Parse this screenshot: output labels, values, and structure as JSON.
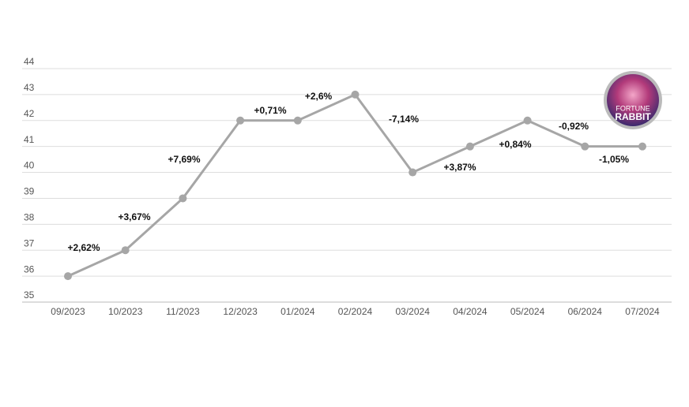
{
  "chart_data": {
    "type": "line",
    "x": [
      "09/2023",
      "10/2023",
      "11/2023",
      "12/2023",
      "01/2024",
      "02/2024",
      "03/2024",
      "04/2024",
      "05/2024",
      "06/2024",
      "07/2024"
    ],
    "series": [
      {
        "color": "#a6a6a6",
        "values": [
          36,
          37,
          39,
          42,
          42,
          43,
          40,
          41,
          42,
          41,
          41
        ]
      }
    ],
    "change_labels": [
      "+2,62%",
      "+3,67%",
      "+7,69%",
      "+0,71%",
      "+2,6%",
      "-7,14%",
      "+3,87%",
      "+0,84%",
      "-0,92%",
      "-1,05%"
    ],
    "ylim": [
      35,
      44
    ],
    "yticks": [
      35,
      36,
      37,
      38,
      39,
      40,
      41,
      42,
      43,
      44
    ],
    "grid": true,
    "logo": {
      "line1": "FORTUNE",
      "line2": "RABBIT"
    }
  }
}
